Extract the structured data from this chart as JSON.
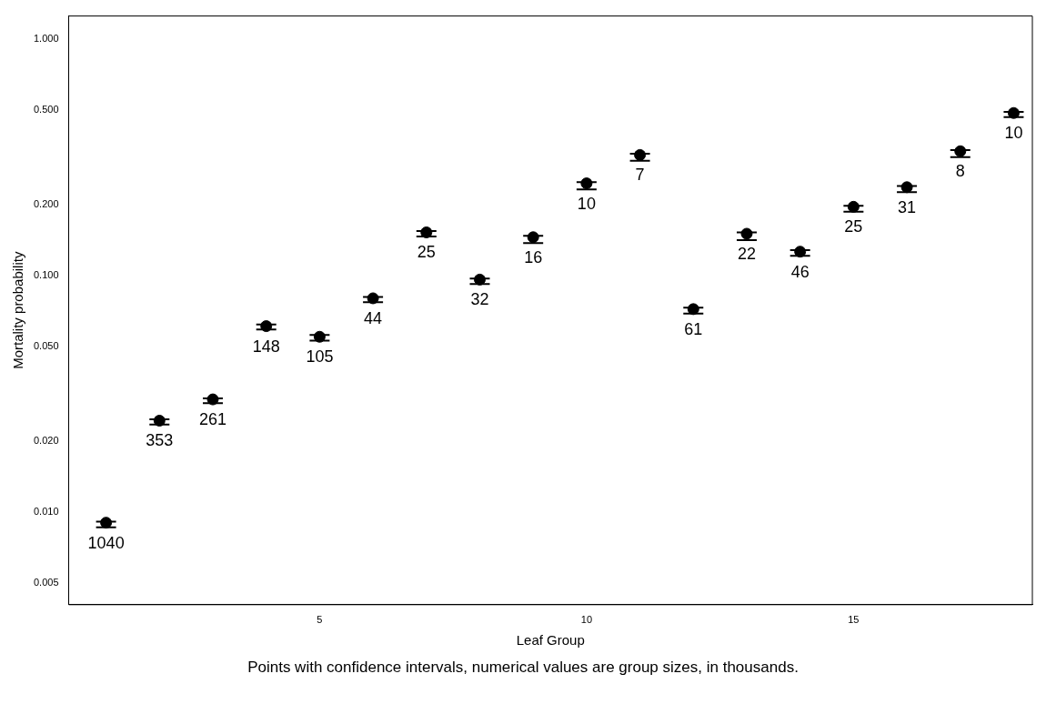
{
  "chart_data": {
    "type": "scatter",
    "xlabel": "Leaf Group",
    "ylabel": "Mortality probability",
    "annotations": [
      "Points with confidence intervals, numerical values are group sizes, in thousands.",
      {
        "text": "1040",
        "x": 1,
        "y": 0.009
      },
      {
        "text": "353",
        "x": 2,
        "y": 0.0243
      },
      {
        "text": "261",
        "x": 3,
        "y": 0.0299
      },
      {
        "text": "148",
        "x": 4,
        "y": 0.061
      },
      {
        "text": "105",
        "x": 5,
        "y": 0.055
      },
      {
        "text": "44",
        "x": 6,
        "y": 0.08
      },
      {
        "text": "25",
        "x": 7,
        "y": 0.152
      },
      {
        "text": "32",
        "x": 8,
        "y": 0.096
      },
      {
        "text": "16",
        "x": 9,
        "y": 0.145
      },
      {
        "text": "10",
        "x": 10,
        "y": 0.245
      },
      {
        "text": "7",
        "x": 11,
        "y": 0.323
      },
      {
        "text": "61",
        "x": 12,
        "y": 0.072
      },
      {
        "text": "22",
        "x": 13,
        "y": 0.15
      },
      {
        "text": "46",
        "x": 14,
        "y": 0.126
      },
      {
        "text": "25",
        "x": 15,
        "y": 0.195
      },
      {
        "text": "31",
        "x": 16,
        "y": 0.236
      },
      {
        "text": "8",
        "x": 17,
        "y": 0.335
      },
      {
        "text": "10",
        "x": 18,
        "y": 0.486
      }
    ],
    "x": [
      1,
      2,
      3,
      4,
      5,
      6,
      7,
      8,
      9,
      10,
      11,
      12,
      13,
      14,
      15,
      16,
      17,
      18
    ],
    "values": [
      0.009,
      0.0243,
      0.0299,
      0.061,
      0.055,
      0.08,
      0.152,
      0.096,
      0.145,
      0.245,
      0.323,
      0.072,
      0.15,
      0.126,
      0.195,
      0.236,
      0.335,
      0.486
    ],
    "errors": [
      [
        0.0086,
        0.0091
      ],
      [
        0.0234,
        0.0246
      ],
      [
        0.0288,
        0.0302
      ],
      [
        0.059,
        0.062
      ],
      [
        0.053,
        0.056
      ],
      [
        0.077,
        0.081
      ],
      [
        0.146,
        0.154
      ],
      [
        0.092,
        0.097
      ],
      [
        0.137,
        0.147
      ],
      [
        0.231,
        0.248
      ],
      [
        0.305,
        0.327
      ],
      [
        0.069,
        0.073
      ],
      [
        0.141,
        0.152
      ],
      [
        0.121,
        0.128
      ],
      [
        0.186,
        0.197
      ],
      [
        0.225,
        0.239
      ],
      [
        0.316,
        0.339
      ],
      [
        0.467,
        0.491
      ]
    ],
    "color": "#000000",
    "marker": "circle",
    "log": "y",
    "xlim": [
      0.3,
      18.35
    ],
    "xticks": [
      5,
      10,
      15
    ],
    "ylim": [
      0.00405,
      1.25
    ],
    "yticks": [
      {
        "value": 0.005,
        "label": "0.005"
      },
      {
        "value": 0.01,
        "label": "0.010"
      },
      {
        "value": 0.02,
        "label": "0.020"
      },
      {
        "value": 0.05,
        "label": "0.050"
      },
      {
        "value": 0.1,
        "label": "0.100"
      },
      {
        "value": 0.2,
        "label": "0.200"
      },
      {
        "value": 0.5,
        "label": "0.500"
      },
      {
        "value": 1,
        "label": "1.000"
      }
    ],
    "grid": false,
    "legend": false
  }
}
